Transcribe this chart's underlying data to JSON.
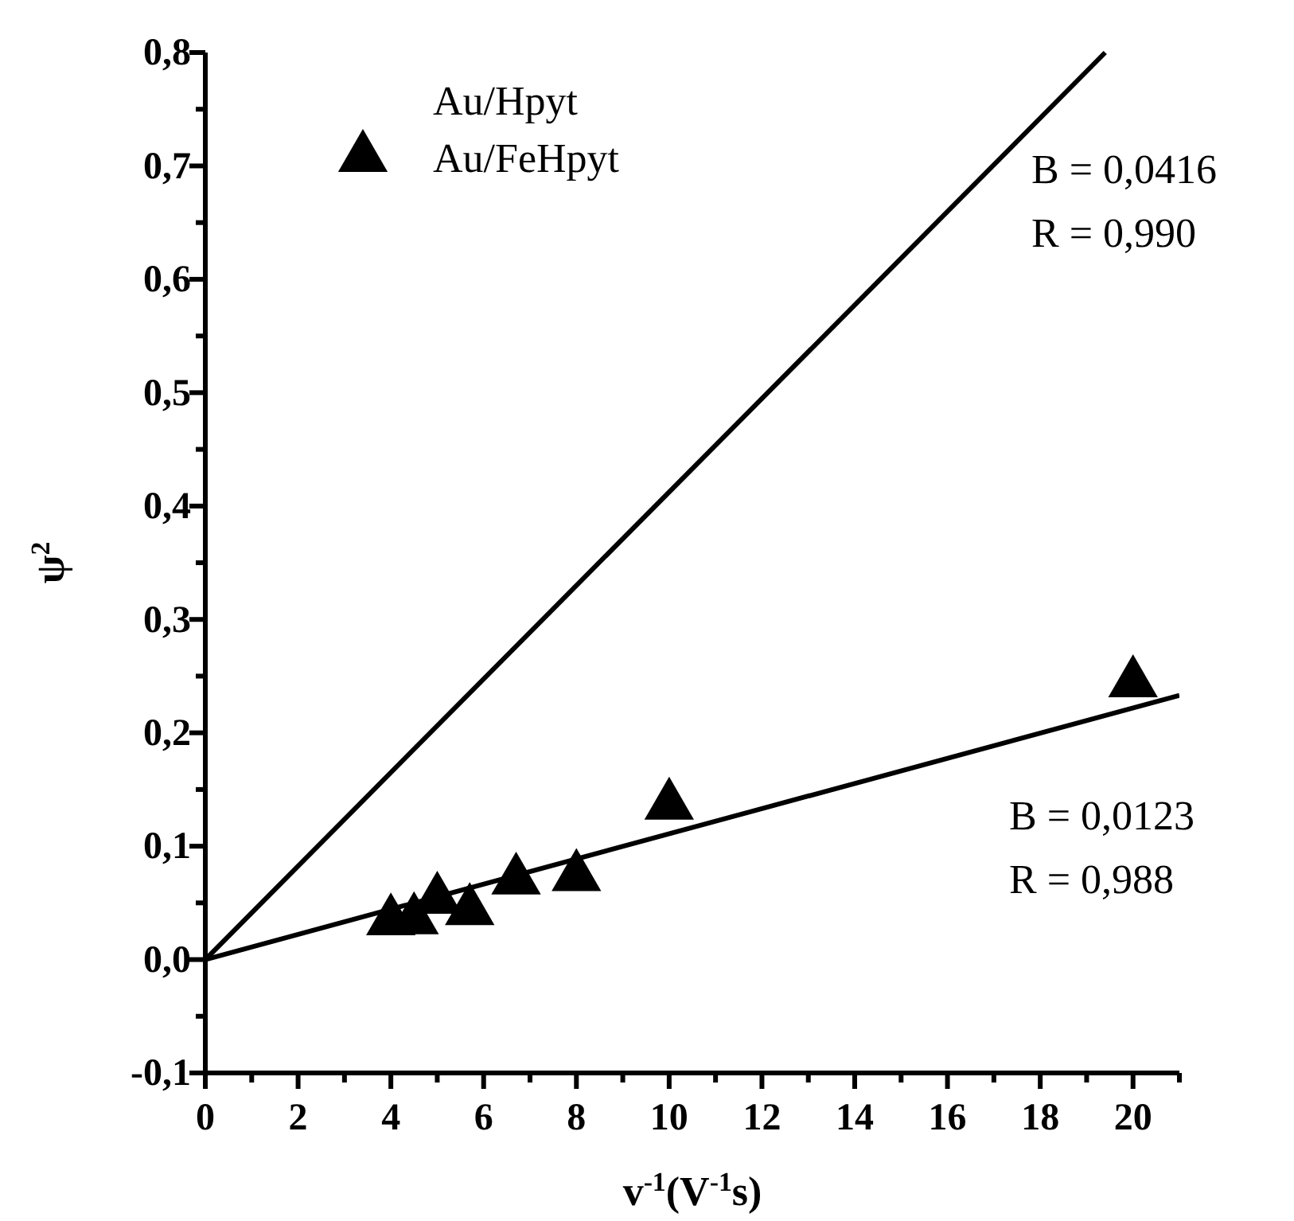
{
  "chart_data": {
    "type": "scatter",
    "xlabel": "v$^{-1}$(V$^{-1}$s)",
    "ylabel": "ψ$^{2}$",
    "xlim": [
      0,
      21
    ],
    "ylim": [
      -0.1,
      0.8
    ],
    "xticks": [
      0,
      {
        "value": 1,
        "label": null
      },
      2,
      {
        "value": 3,
        "label": null
      },
      4,
      {
        "value": 5,
        "label": null
      },
      6,
      {
        "value": 7,
        "label": null
      },
      8,
      {
        "value": 9,
        "label": null
      },
      10,
      {
        "value": 11,
        "label": null
      },
      12,
      {
        "value": 13,
        "label": null
      },
      14,
      {
        "value": 15,
        "label": null
      },
      16,
      {
        "value": 17,
        "label": null
      },
      18,
      {
        "value": 19,
        "label": null
      },
      20,
      {
        "value": 21,
        "label": null
      }
    ],
    "yticks": [
      {
        "value": -0.1,
        "label": "-0,1"
      },
      {
        "value": -0.05,
        "label": null
      },
      {
        "value": 0,
        "label": "0,0"
      },
      {
        "value": 0.05,
        "label": null
      },
      {
        "value": 0.1,
        "label": "0,1"
      },
      {
        "value": 0.15,
        "label": null
      },
      {
        "value": 0.2,
        "label": "0,2"
      },
      {
        "value": 0.25,
        "label": null
      },
      {
        "value": 0.3,
        "label": "0,3"
      },
      {
        "value": 0.35,
        "label": null
      },
      {
        "value": 0.4,
        "label": "0,4"
      },
      {
        "value": 0.45,
        "label": null
      },
      {
        "value": 0.5,
        "label": "0,5"
      },
      {
        "value": 0.55,
        "label": null
      },
      {
        "value": 0.6,
        "label": "0,6"
      },
      {
        "value": 0.65,
        "label": null
      },
      {
        "value": 0.7,
        "label": "0,7"
      },
      {
        "value": 0.75,
        "label": null
      },
      {
        "value": 0.8,
        "label": "0,8"
      }
    ],
    "grid": false,
    "legend": "top left",
    "series": [
      {
        "name": "Au/Hpyt",
        "marker": "none",
        "color": "#000000"
      },
      {
        "name": "Au/FeHpyt",
        "marker": "triangle",
        "color": "#000000",
        "x": [
          4,
          4.5,
          5,
          5.7,
          6.7,
          8,
          10,
          20
        ],
        "values": [
          0.034,
          0.035,
          0.053,
          0.043,
          0.07,
          0.073,
          0.136,
          0.244
        ]
      },
      {
        "type": "line",
        "marker": "none",
        "line_style": "solid",
        "color": "#000000",
        "x": [
          0,
          19.4
        ],
        "values": [
          0,
          0.8
        ]
      },
      {
        "type": "line",
        "marker": "none",
        "line_style": "solid",
        "color": "#000000",
        "x": [
          0,
          21
        ],
        "values": [
          0,
          0.233
        ]
      }
    ],
    "annotations": [
      "B = 0,0416",
      "R = 0,990",
      "B = 0,0123",
      "R = 0,988"
    ]
  }
}
